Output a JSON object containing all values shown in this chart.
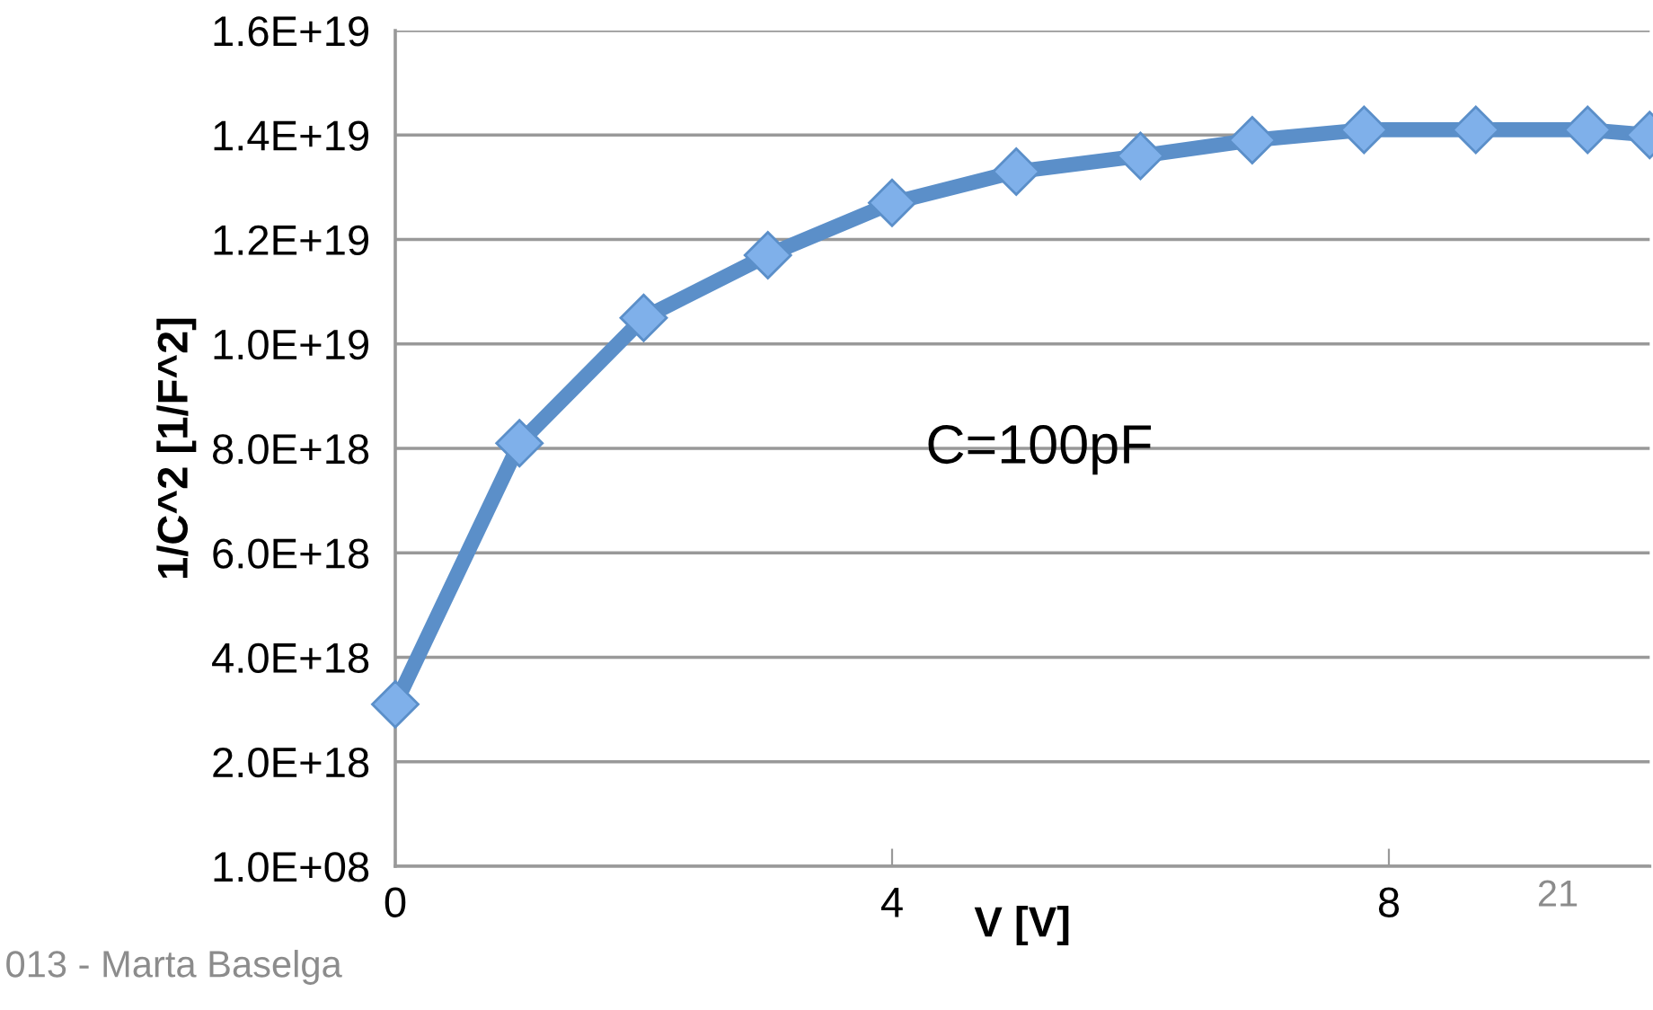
{
  "chart_data": {
    "type": "line",
    "xlabel": "V [V]",
    "ylabel": "1/C^2 [1/F^2]",
    "x": [
      0,
      1,
      2,
      3,
      4,
      5,
      6,
      6.9,
      7.8,
      8.7,
      9.6,
      10.1
    ],
    "series": [
      {
        "color": "#5b8fc9",
        "values": [
          3.1e+18,
          8.1e+18,
          1.05e+19,
          1.17e+19,
          1.27e+19,
          1.33e+19,
          1.36e+19,
          1.39e+19,
          1.41e+19,
          1.41e+19,
          1.41e+19,
          1.4e+19
        ]
      }
    ],
    "marker": "diamond",
    "line_style": "solid",
    "xlim": [
      0,
      10.1
    ],
    "xticks": [
      0,
      4,
      8
    ],
    "ylim": [
      100000000.0,
      1.6e+19
    ],
    "yticks": [
      {
        "value": 100000000.0,
        "label": "1.0E+08"
      },
      {
        "value": 2e+18,
        "label": "2.0E+18"
      },
      {
        "value": 4e+18,
        "label": "4.0E+18"
      },
      {
        "value": 6e+18,
        "label": "6.0E+18"
      },
      {
        "value": 8e+18,
        "label": "8.0E+18"
      },
      {
        "value": 1e+19,
        "label": "1.0E+19"
      },
      {
        "value": 1.2e+19,
        "label": "1.2E+19"
      },
      {
        "value": 1.4e+19,
        "label": "1.4E+19"
      },
      {
        "value": 1.6e+19,
        "label": "1.6E+19"
      }
    ],
    "grid": "y",
    "annotations": [
      "C=100pF",
      "013 - Marta Baselga",
      "21"
    ]
  }
}
